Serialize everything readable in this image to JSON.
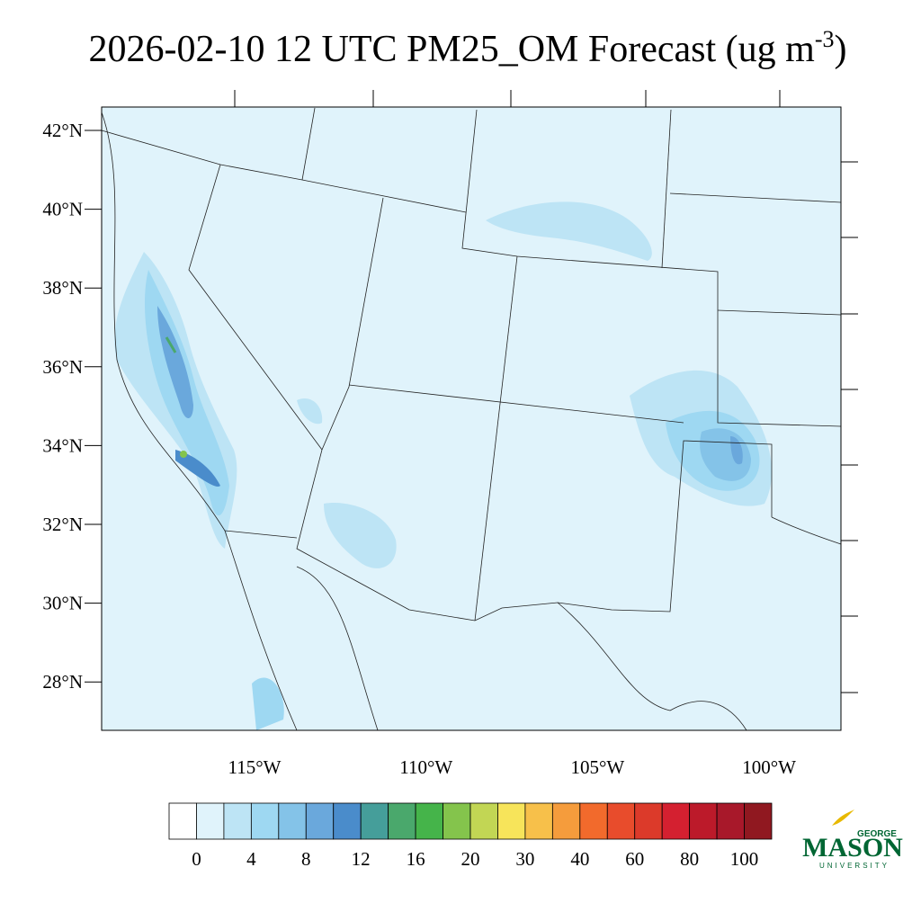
{
  "title_parts": [
    "2026-02-10 12 UTC PM25_OM Forecast (ug m",
    "-3",
    ")"
  ],
  "lat_labels": [
    "42°N",
    "40°N",
    "38°N",
    "36°N",
    "34°N",
    "32°N",
    "30°N",
    "28°N"
  ],
  "lon_labels": [
    "115°W",
    "110°W",
    "105°W",
    "100°W"
  ],
  "colorbar": {
    "labels": [
      0,
      4,
      8,
      12,
      16,
      20,
      30,
      40,
      60,
      80,
      100
    ],
    "colors": [
      "#ffffff",
      "#e0f3fb",
      "#bde4f5",
      "#9ed8f2",
      "#84c3e8",
      "#6aa8dc",
      "#4a8ccb",
      "#459e9a",
      "#4aa86c",
      "#45b44a",
      "#84c44c",
      "#c2d654",
      "#f7e45a",
      "#f7c04a",
      "#f59c3c",
      "#f26a2c",
      "#e84c2c",
      "#dc3a2a",
      "#d42030",
      "#bc1a2a",
      "#a8182a",
      "#901820"
    ]
  },
  "logo": {
    "top": "GEORGE",
    "main": "MASON",
    "bottom": "UNIVERSITY"
  }
}
